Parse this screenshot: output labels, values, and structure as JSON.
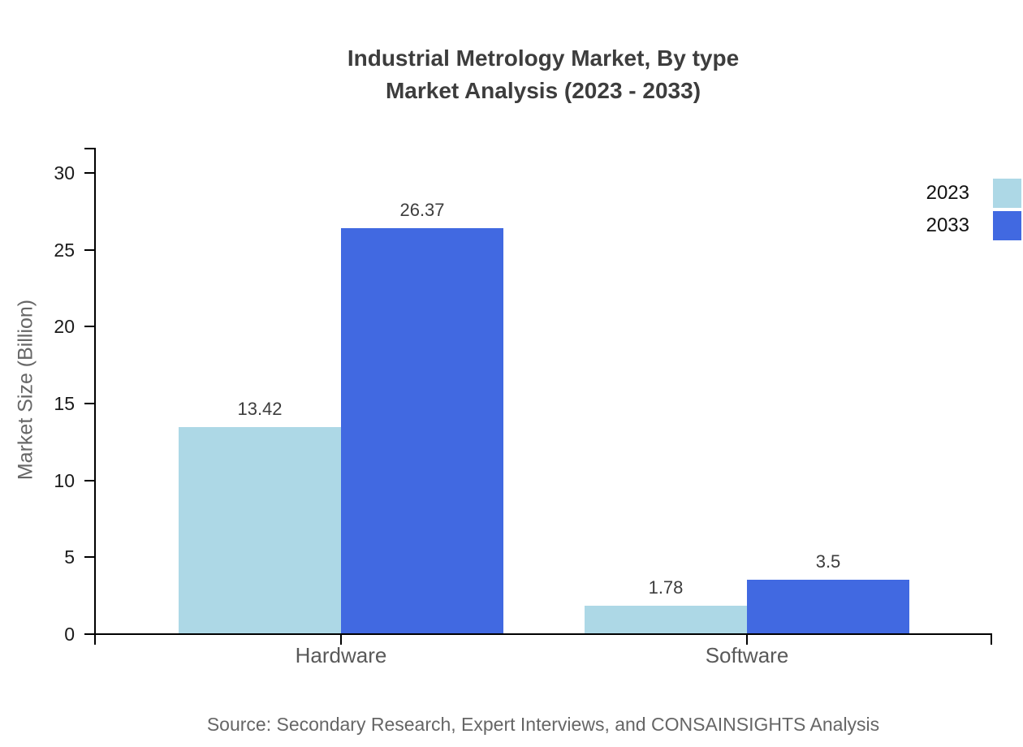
{
  "title": {
    "line1": "Industrial Metrology Market, By type",
    "line2": "Market Analysis (2023 - 2033)"
  },
  "source": "Source: Secondary Research, Expert Interviews, and CONSAINSIGHTS Analysis",
  "chart_data": {
    "type": "bar",
    "categories": [
      "Hardware",
      "Software"
    ],
    "series": [
      {
        "name": "2023",
        "color": "#ADD8E6",
        "values": [
          13.42,
          1.78
        ]
      },
      {
        "name": "2033",
        "color": "#4169E1",
        "values": [
          26.37,
          3.5
        ]
      }
    ],
    "title": "Industrial Metrology Market, By type — Market Analysis (2023 - 2033)",
    "xlabel": "",
    "ylabel": "Market Size (Billion)",
    "ylim": [
      0,
      31.6
    ],
    "yticks": [
      0,
      5,
      10,
      15,
      20,
      25,
      30
    ],
    "grid": false,
    "legend_position": "top-right",
    "value_labels_shown": true,
    "colors": {
      "axis": "#000000",
      "title_text": "#3d3d3d",
      "tick_label_text": "#1a1a1a",
      "category_label_text": "#595959",
      "value_label_text": "#3d3d3d",
      "axis_title_text": "#666666",
      "source_text": "#666666"
    }
  }
}
